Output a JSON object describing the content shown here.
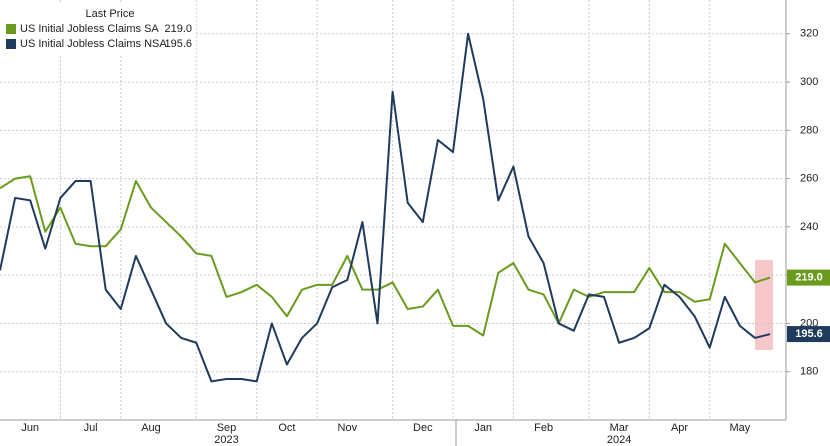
{
  "chart_data": {
    "type": "line",
    "legend_title": "Last Price",
    "categories": [
      null,
      null,
      "Jun",
      null,
      null,
      null,
      "Jul",
      null,
      null,
      null,
      "Aug",
      null,
      null,
      null,
      null,
      "Sep",
      null,
      null,
      null,
      "Oct",
      null,
      null,
      null,
      "Nov",
      null,
      null,
      null,
      null,
      "Dec",
      null,
      null,
      null,
      "Jan",
      null,
      null,
      null,
      "Feb",
      null,
      null,
      null,
      null,
      "Mar",
      null,
      null,
      null,
      "Apr",
      null,
      null,
      null,
      "May",
      null,
      null
    ],
    "year_labels": [
      "2023",
      "2024"
    ],
    "series": [
      {
        "name": "US Initial Jobless Claims SA",
        "last": "219.0",
        "color": "#6b9b1e",
        "values": [
          256,
          260,
          261,
          238,
          248,
          233,
          232,
          232,
          239,
          259,
          248,
          242,
          236,
          229,
          228,
          211,
          213,
          216,
          211,
          203,
          214,
          216,
          216,
          228,
          214,
          214,
          217,
          206,
          207,
          214,
          199,
          199,
          195,
          221,
          225,
          214,
          212,
          200,
          214,
          211,
          213,
          213,
          213,
          223,
          213,
          213,
          209,
          210,
          233,
          225,
          217,
          219.0
        ]
      },
      {
        "name": "US Initial Jobless Claims NSA",
        "last": "195.6",
        "color": "#1e3a5c",
        "values": [
          222,
          252,
          251,
          231,
          252,
          259,
          259,
          214,
          206,
          228,
          214,
          200,
          194,
          192,
          176,
          177,
          177,
          176,
          200,
          183,
          194,
          200,
          215,
          218,
          242,
          200,
          296,
          250,
          242,
          276,
          271,
          320,
          293,
          251,
          265,
          236,
          225,
          200,
          197,
          212,
          211,
          192,
          194,
          198,
          216,
          211,
          203,
          190,
          211,
          199,
          194,
          195.6
        ]
      }
    ],
    "ylim": [
      160,
      334
    ],
    "yticks": [
      180,
      200,
      220,
      240,
      260,
      280,
      300,
      320
    ],
    "grid": true,
    "legend": "upper left"
  }
}
